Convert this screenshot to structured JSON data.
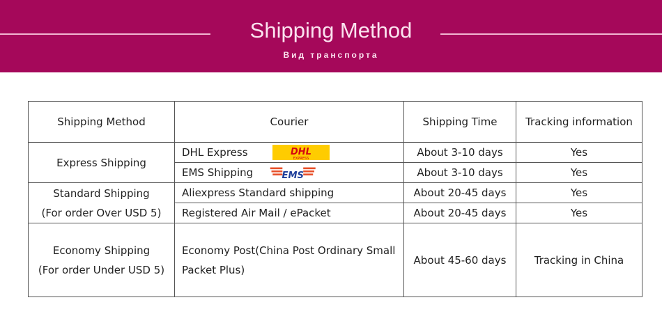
{
  "banner": {
    "title": "Shipping Method",
    "subtitle": "Вид транспорта",
    "color": "#a5085a"
  },
  "table": {
    "headers": [
      "Shipping Method",
      "Courier",
      "Shipping Time",
      "Tracking information"
    ],
    "groups": [
      {
        "method": "Express Shipping",
        "rows": [
          {
            "courier": "DHL Express",
            "logo": "dhl-logo",
            "time": "About 3-10 days",
            "tracking": "Yes"
          },
          {
            "courier": "EMS Shipping",
            "logo": "ems-logo",
            "time": "About 3-10 days",
            "tracking": "Yes"
          }
        ]
      },
      {
        "method": "Standard Shipping",
        "method_note": "(For order Over USD 5)",
        "rows": [
          {
            "courier": "Aliexpress Standard shipping",
            "time": "About 20-45 days",
            "tracking": "Yes"
          },
          {
            "courier": "Registered Air Mail / ePacket",
            "time": "About 20-45 days",
            "tracking": "Yes"
          }
        ]
      },
      {
        "method": "Economy Shipping",
        "method_note": "(For order Under USD 5)",
        "rows": [
          {
            "courier": "Economy Post(China Post Ordinary Small Packet Plus)",
            "time": "About 45-60 days",
            "tracking": "Tracking in China"
          }
        ]
      }
    ]
  }
}
